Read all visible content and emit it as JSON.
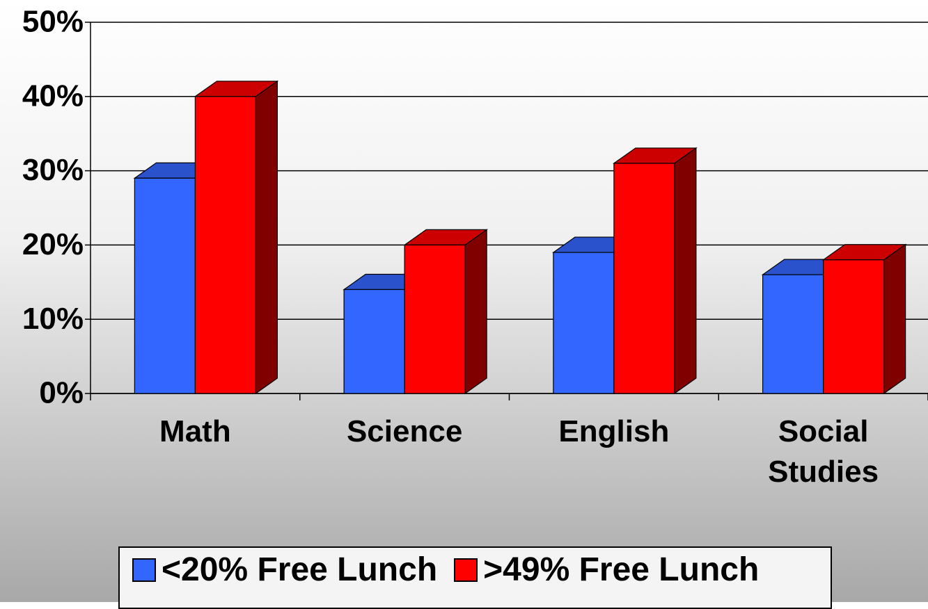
{
  "chart_data": {
    "type": "bar3d",
    "categories": [
      "Math",
      "Science",
      "English",
      "Social Studies"
    ],
    "series": [
      {
        "name": "<20% Free Lunch",
        "color": "#3366ff",
        "values": [
          29,
          14,
          19,
          16
        ]
      },
      {
        "name": ">49% Free Lunch",
        "color": "#ff0000",
        "values": [
          40,
          20,
          31,
          18
        ]
      }
    ],
    "ylim": [
      0,
      50
    ],
    "yticks": [
      {
        "value": 0,
        "label": "0%"
      },
      {
        "value": 10,
        "label": "10%"
      },
      {
        "value": 20,
        "label": "20%"
      },
      {
        "value": 30,
        "label": "30%"
      },
      {
        "value": 40,
        "label": "40%"
      },
      {
        "value": 50,
        "label": "50%"
      }
    ],
    "grid": true,
    "legend": "bottom"
  }
}
